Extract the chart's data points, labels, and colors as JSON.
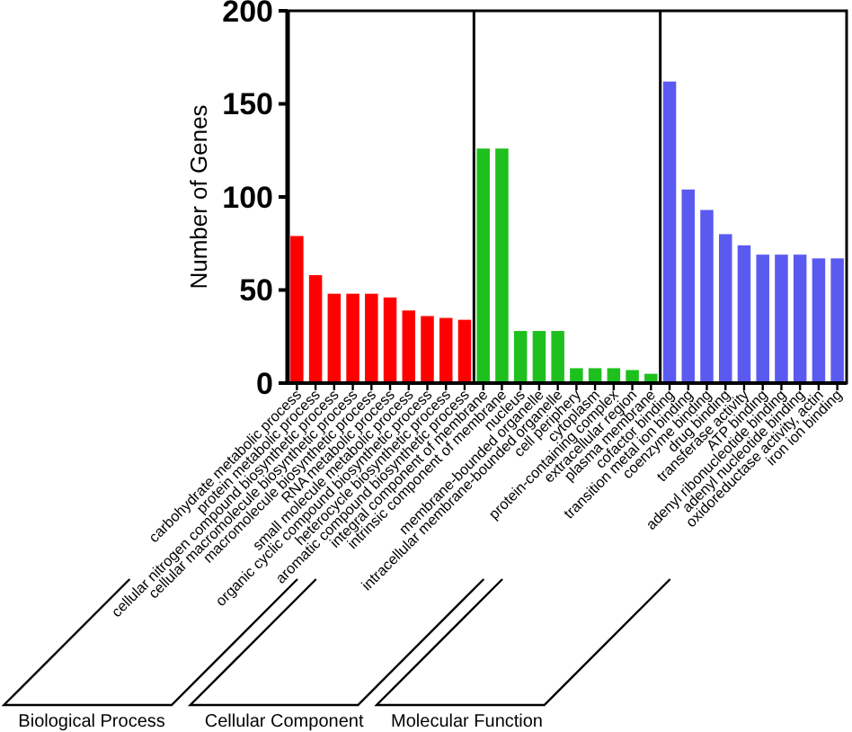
{
  "chart_data": {
    "type": "bar",
    "ylabel": "Number of Genes",
    "categories": [
      "carbohydrate metabolic process",
      "protein metabolic process",
      "cellular nitrogen compound biosynthetic process",
      "cellular macromolecule biosynthetic process",
      "macromolecule biosynthetic process",
      "RNA metabolic process",
      "small molecule metabolic process",
      "organic cyclic compound biosynthetic process",
      "heterocycle biosynthetic process",
      "aromatic compound biosynthetic process",
      "integral component of membrane",
      "intrinsic component of membrane",
      "nucleus",
      "membrane-bounded organelle",
      "intracellular membrane-bounded organelle",
      "cell periphery",
      "cytoplasm",
      "protein-containing complex",
      "extracellular region",
      "plasma membrane",
      "cofactor binding",
      "transition metal ion binding",
      "coenzyme binding",
      "drug binding",
      "transferase activity",
      "ATP binding",
      "adenyl ribonucleotide binding",
      "adenyl nucleotide binding",
      "oxidoreductase activity, actin",
      "iron ion binding"
    ],
    "series": [
      {
        "color": "#ff0000",
        "values": [
          79,
          58,
          48,
          48,
          48,
          46,
          39,
          36,
          35,
          34,
          null,
          null,
          null,
          null,
          null,
          null,
          null,
          null,
          null,
          null,
          null,
          null,
          null,
          null,
          null,
          null,
          null,
          null,
          null,
          null
        ]
      },
      {
        "color": "#1ec01e",
        "values": [
          null,
          null,
          null,
          null,
          null,
          null,
          null,
          null,
          null,
          null,
          126,
          126,
          28,
          28,
          28,
          8,
          8,
          8,
          7,
          5,
          null,
          null,
          null,
          null,
          null,
          null,
          null,
          null,
          null,
          null
        ]
      },
      {
        "color": "#5a5af0",
        "values": [
          null,
          null,
          null,
          null,
          null,
          null,
          null,
          null,
          null,
          null,
          null,
          null,
          null,
          null,
          null,
          null,
          null,
          null,
          null,
          null,
          162,
          104,
          93,
          80,
          74,
          69,
          69,
          69,
          67,
          67
        ]
      }
    ],
    "annotations": [
      "Biological Process",
      "Cellular Component",
      "Molecular Function"
    ],
    "ylim": [
      0,
      200
    ],
    "yticks": [
      0,
      50,
      100,
      150,
      200
    ]
  }
}
